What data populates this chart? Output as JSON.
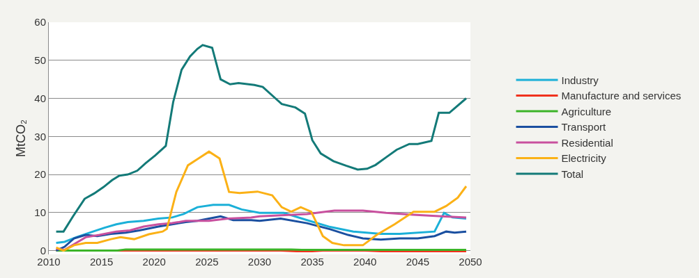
{
  "chart_data": {
    "type": "line",
    "ylabel": "MtCO₂",
    "xlim": [
      2010,
      2050
    ],
    "xticks": [
      2010,
      2015,
      2020,
      2025,
      2030,
      2035,
      2040,
      2045,
      2050
    ],
    "ylim": [
      -1,
      60
    ],
    "yticks": [
      0,
      10,
      20,
      30,
      40,
      50,
      60
    ],
    "grid": "y",
    "legend": "right",
    "line_style": "solid",
    "marker": "none",
    "series": [
      {
        "name": "Industry",
        "color": "#1bb0d8",
        "x": [
          2010.7,
          2011.5,
          2012.6,
          2014.2,
          2015.3,
          2016.4,
          2017.5,
          2019,
          2020.4,
          2021.7,
          2022.8,
          2024.1,
          2025.6,
          2027.1,
          2028.3,
          2030,
          2032.3,
          2034.5,
          2036.7,
          2038.9,
          2041.5,
          2043.3,
          2046.6,
          2047.5,
          2048.3,
          2049.6
        ],
        "values": [
          2,
          2.3,
          3.5,
          5,
          6,
          6.9,
          7.5,
          7.8,
          8.4,
          8.7,
          9.6,
          11.4,
          12,
          12,
          10.8,
          9.9,
          9.9,
          8,
          6.2,
          5,
          4.4,
          4.4,
          5,
          9.9,
          8.7,
          8.4
        ]
      },
      {
        "name": "Manufacture and services",
        "color": "#f0321e",
        "x": [
          2010.7,
          2032,
          2033.5,
          2035,
          2036,
          2040,
          2041.5,
          2049.6
        ],
        "values": [
          0,
          0,
          -0.2,
          -0.2,
          0,
          0,
          -0.2,
          -0.2
        ]
      },
      {
        "name": "Agriculture",
        "color": "#3cb428",
        "x": [
          2010.7,
          2016.5,
          2017.3,
          2033,
          2034,
          2049.6
        ],
        "values": [
          0,
          0,
          0.3,
          0.3,
          0.2,
          0.2
        ]
      },
      {
        "name": "Transport",
        "color": "#1a4fa0",
        "x": [
          2010.7,
          2011.5,
          2012.4,
          2013.5,
          2014.6,
          2015.9,
          2017.3,
          2018.6,
          2020.4,
          2021.7,
          2023,
          2024.1,
          2025.2,
          2026.3,
          2027.5,
          2029.2,
          2030,
          2032,
          2034.5,
          2036.7,
          2038.4,
          2039.8,
          2041.5,
          2043.3,
          2045,
          2046.6,
          2047.7,
          2048.5,
          2049.6
        ],
        "values": [
          0,
          1,
          3.2,
          4.1,
          3.8,
          4.4,
          4.7,
          5.3,
          6.3,
          6.9,
          7.5,
          7.8,
          8.4,
          9,
          8,
          8,
          7.8,
          8.4,
          7.2,
          5.6,
          4.1,
          3.2,
          2.9,
          3.2,
          3.2,
          3.8,
          5,
          4.7,
          5
        ]
      },
      {
        "name": "Residential",
        "color": "#c8509e",
        "x": [
          2010.7,
          2011.5,
          2012.6,
          2013.5,
          2014.8,
          2016.4,
          2017.7,
          2019,
          2020.4,
          2021.7,
          2023,
          2025.2,
          2027,
          2029.2,
          2030,
          2034.5,
          2037.1,
          2039.8,
          2042,
          2044.6,
          2047.3,
          2049.6
        ],
        "values": [
          0.5,
          0.2,
          2,
          3.5,
          4.1,
          5,
          5.3,
          6.3,
          6.9,
          7.2,
          7.8,
          7.8,
          8.4,
          8.7,
          9,
          9.6,
          10.5,
          10.5,
          9.9,
          9.4,
          9,
          8.7
        ]
      },
      {
        "name": "Electricity",
        "color": "#fbb116",
        "x": [
          2010.7,
          2011.4,
          2012.4,
          2013.5,
          2014.6,
          2015.9,
          2016.8,
          2018.1,
          2019.5,
          2020.8,
          2021.2,
          2022.1,
          2023.2,
          2024.1,
          2025.2,
          2026.2,
          2027.1,
          2028.1,
          2029.8,
          2031.2,
          2032.1,
          2033,
          2033.9,
          2034.9,
          2036,
          2036.9,
          2038,
          2039.8,
          2041.1,
          2042.8,
          2044.6,
          2046.6,
          2047.7,
          2048.8,
          2049.6
        ],
        "values": [
          0.8,
          0,
          1.4,
          2,
          2,
          3,
          3.5,
          3,
          4.3,
          5,
          5.7,
          15.4,
          22.4,
          24,
          26,
          24.2,
          15.4,
          15.1,
          15.5,
          14.5,
          11.4,
          10.2,
          11.4,
          10.2,
          3.8,
          2,
          1.4,
          1.4,
          4.1,
          6.9,
          10.2,
          10.2,
          11.7,
          13.9,
          16.9
        ]
      },
      {
        "name": "Total",
        "color": "#137a78",
        "x": [
          2010.7,
          2011.4,
          2012.3,
          2013.4,
          2014.3,
          2015.2,
          2016,
          2016.7,
          2017.5,
          2018.4,
          2019.2,
          2020.1,
          2021.1,
          2021.8,
          2022.6,
          2023.4,
          2024.1,
          2024.6,
          2025.5,
          2026.3,
          2027.2,
          2028,
          2029.5,
          2030.3,
          2031.5,
          2032.1,
          2033.4,
          2034.3,
          2035,
          2035.8,
          2037,
          2038.2,
          2039.3,
          2040.2,
          2041,
          2042,
          2043,
          2044.2,
          2045,
          2046.3,
          2047,
          2048,
          2049.6
        ],
        "values": [
          5,
          5,
          9,
          13.6,
          15,
          16.7,
          18.5,
          19.7,
          20,
          21,
          23,
          25,
          27.5,
          39,
          47.5,
          51,
          53,
          54,
          53.3,
          45,
          43.7,
          44,
          43.5,
          43,
          40,
          38.5,
          37.6,
          36,
          29,
          25.5,
          23.5,
          22.3,
          21.3,
          21.5,
          22.5,
          24.5,
          26.5,
          28,
          28,
          28.8,
          36.2,
          36.2,
          40
        ]
      }
    ]
  }
}
